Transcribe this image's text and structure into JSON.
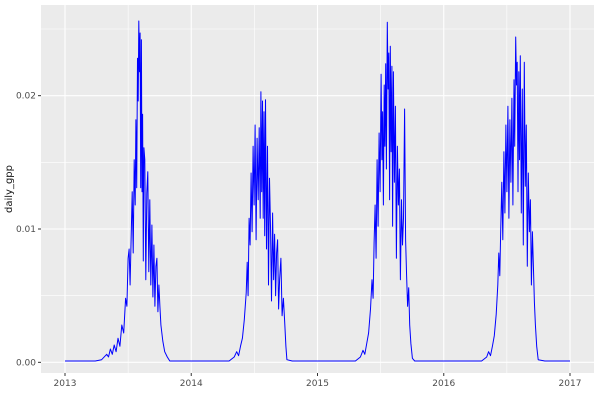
{
  "figure": {
    "kind": "ggplot2-style time series plot",
    "title": "",
    "panel_background": "#EBEBEB",
    "grid_color": "#FFFFFF",
    "tick_mark_color": "#333333",
    "tick_label_color": "#4D4D4D"
  },
  "chart_data": {
    "type": "line",
    "title": "",
    "xlabel": "",
    "ylabel": "daily_gpp",
    "legend": "none",
    "grid": "on",
    "xlim": [
      2012.81,
      2017.19
    ],
    "ylim": [
      -0.0008,
      0.0268
    ],
    "x_tick_values": [
      2013,
      2014,
      2015,
      2016,
      2017
    ],
    "x_tick_labels": [
      "2013",
      "2014",
      "2015",
      "2016",
      "2017"
    ],
    "x_minor_ticks": [
      2013.5,
      2014.5,
      2015.5,
      2016.5
    ],
    "y_tick_values": [
      0,
      0.01,
      0.02
    ],
    "y_tick_labels": [
      "0.00",
      "0.01",
      "0.02"
    ],
    "y_minor_ticks": [
      0.005,
      0.015,
      0.025
    ],
    "series": [
      {
        "name": "daily_gpp",
        "color": "#0000FF",
        "points": [
          [
            2013.0,
            0.0001
          ],
          [
            2013.08,
            0.0001
          ],
          [
            2013.16,
            0.0001
          ],
          [
            2013.24,
            0.0001
          ],
          [
            2013.29,
            0.0002
          ],
          [
            2013.33,
            0.0006
          ],
          [
            2013.345,
            0.0004
          ],
          [
            2013.36,
            0.001
          ],
          [
            2013.375,
            0.0006
          ],
          [
            2013.39,
            0.0013
          ],
          [
            2013.405,
            0.0008
          ],
          [
            2013.42,
            0.0018
          ],
          [
            2013.435,
            0.0012
          ],
          [
            2013.45,
            0.0028
          ],
          [
            2013.465,
            0.0022
          ],
          [
            2013.48,
            0.0048
          ],
          [
            2013.49,
            0.0042
          ],
          [
            2013.5,
            0.0078
          ],
          [
            2013.508,
            0.0085
          ],
          [
            2013.516,
            0.0058
          ],
          [
            2013.524,
            0.0092
          ],
          [
            2013.532,
            0.0128
          ],
          [
            2013.54,
            0.0082
          ],
          [
            2013.548,
            0.0152
          ],
          [
            2013.556,
            0.0118
          ],
          [
            2013.562,
            0.0182
          ],
          [
            2013.568,
            0.0131
          ],
          [
            2013.574,
            0.0228
          ],
          [
            2013.58,
            0.0196
          ],
          [
            2013.585,
            0.0256
          ],
          [
            2013.59,
            0.0218
          ],
          [
            2013.595,
            0.0247
          ],
          [
            2013.6,
            0.0131
          ],
          [
            2013.605,
            0.0242
          ],
          [
            2013.61,
            0.0128
          ],
          [
            2013.615,
            0.0186
          ],
          [
            2013.62,
            0.0076
          ],
          [
            2013.625,
            0.0161
          ],
          [
            2013.632,
            0.0152
          ],
          [
            2013.64,
            0.0062
          ],
          [
            2013.648,
            0.0127
          ],
          [
            2013.656,
            0.0143
          ],
          [
            2013.664,
            0.0068
          ],
          [
            2013.672,
            0.0122
          ],
          [
            2013.68,
            0.0058
          ],
          [
            2013.688,
            0.0103
          ],
          [
            2013.696,
            0.0049
          ],
          [
            2013.704,
            0.0088
          ],
          [
            2013.712,
            0.0042
          ],
          [
            2013.72,
            0.0072
          ],
          [
            2013.728,
            0.0078
          ],
          [
            2013.736,
            0.0038
          ],
          [
            2013.744,
            0.0058
          ],
          [
            2013.752,
            0.0042
          ],
          [
            2013.76,
            0.0028
          ],
          [
            2013.775,
            0.0016
          ],
          [
            2013.79,
            0.0008
          ],
          [
            2013.81,
            0.0004
          ],
          [
            2013.83,
            0.0001
          ],
          [
            2013.92,
            0.0001
          ],
          [
            2014.0,
            0.0001
          ],
          [
            2014.1,
            0.0001
          ],
          [
            2014.2,
            0.0001
          ],
          [
            2014.3,
            0.0001
          ],
          [
            2014.34,
            0.0004
          ],
          [
            2014.36,
            0.0008
          ],
          [
            2014.375,
            0.0005
          ],
          [
            2014.39,
            0.0012
          ],
          [
            2014.405,
            0.0018
          ],
          [
            2014.42,
            0.0032
          ],
          [
            2014.435,
            0.0052
          ],
          [
            2014.443,
            0.0075
          ],
          [
            2014.45,
            0.005
          ],
          [
            2014.458,
            0.0108
          ],
          [
            2014.466,
            0.0088
          ],
          [
            2014.474,
            0.0142
          ],
          [
            2014.482,
            0.0098
          ],
          [
            2014.49,
            0.0162
          ],
          [
            2014.498,
            0.0118
          ],
          [
            2014.506,
            0.0178
          ],
          [
            2014.514,
            0.0092
          ],
          [
            2014.522,
            0.0168
          ],
          [
            2014.53,
            0.0122
          ],
          [
            2014.538,
            0.0176
          ],
          [
            2014.546,
            0.0108
          ],
          [
            2014.552,
            0.0203
          ],
          [
            2014.558,
            0.0128
          ],
          [
            2014.564,
            0.0196
          ],
          [
            2014.57,
            0.0108
          ],
          [
            2014.576,
            0.0188
          ],
          [
            2014.582,
            0.0095
          ],
          [
            2014.588,
            0.0197
          ],
          [
            2014.596,
            0.0085
          ],
          [
            2014.604,
            0.0162
          ],
          [
            2014.612,
            0.0058
          ],
          [
            2014.62,
            0.0138
          ],
          [
            2014.628,
            0.0102
          ],
          [
            2014.636,
            0.0046
          ],
          [
            2014.644,
            0.0112
          ],
          [
            2014.652,
            0.0062
          ],
          [
            2014.66,
            0.0096
          ],
          [
            2014.668,
            0.005
          ],
          [
            2014.676,
            0.0082
          ],
          [
            2014.684,
            0.0092
          ],
          [
            2014.692,
            0.004
          ],
          [
            2014.7,
            0.0062
          ],
          [
            2014.71,
            0.0078
          ],
          [
            2014.72,
            0.0035
          ],
          [
            2014.73,
            0.0048
          ],
          [
            2014.74,
            0.003
          ],
          [
            2014.75,
            0.0012
          ],
          [
            2014.758,
            0.0002
          ],
          [
            2014.8,
            0.0001
          ],
          [
            2014.9,
            0.0001
          ],
          [
            2015.0,
            0.0001
          ],
          [
            2015.1,
            0.0001
          ],
          [
            2015.2,
            0.0001
          ],
          [
            2015.3,
            0.0001
          ],
          [
            2015.34,
            0.0004
          ],
          [
            2015.36,
            0.0009
          ],
          [
            2015.375,
            0.0006
          ],
          [
            2015.39,
            0.0014
          ],
          [
            2015.405,
            0.0022
          ],
          [
            2015.42,
            0.004
          ],
          [
            2015.432,
            0.0062
          ],
          [
            2015.44,
            0.0048
          ],
          [
            2015.448,
            0.009
          ],
          [
            2015.456,
            0.0118
          ],
          [
            2015.464,
            0.0078
          ],
          [
            2015.472,
            0.0152
          ],
          [
            2015.48,
            0.0102
          ],
          [
            2015.488,
            0.0172
          ],
          [
            2015.496,
            0.0128
          ],
          [
            2015.504,
            0.0216
          ],
          [
            2015.51,
            0.0152
          ],
          [
            2015.516,
            0.0188
          ],
          [
            2015.522,
            0.0118
          ],
          [
            2015.528,
            0.0208
          ],
          [
            2015.534,
            0.0162
          ],
          [
            2015.54,
            0.0224
          ],
          [
            2015.546,
            0.0145
          ],
          [
            2015.553,
            0.0255
          ],
          [
            2015.559,
            0.0205
          ],
          [
            2015.565,
            0.0232
          ],
          [
            2015.571,
            0.0122
          ],
          [
            2015.577,
            0.0237
          ],
          [
            2015.583,
            0.0158
          ],
          [
            2015.589,
            0.0222
          ],
          [
            2015.595,
            0.0102
          ],
          [
            2015.601,
            0.0218
          ],
          [
            2015.609,
            0.0135
          ],
          [
            2015.617,
            0.0192
          ],
          [
            2015.625,
            0.0078
          ],
          [
            2015.633,
            0.0162
          ],
          [
            2015.641,
            0.0118
          ],
          [
            2015.649,
            0.0145
          ],
          [
            2015.657,
            0.0062
          ],
          [
            2015.665,
            0.0122
          ],
          [
            2015.673,
            0.0088
          ],
          [
            2015.681,
            0.0108
          ],
          [
            2015.69,
            0.019
          ],
          [
            2015.698,
            0.0092
          ],
          [
            2015.706,
            0.0065
          ],
          [
            2015.714,
            0.0042
          ],
          [
            2015.722,
            0.0056
          ],
          [
            2015.73,
            0.0028
          ],
          [
            2015.74,
            0.0014
          ],
          [
            2015.752,
            0.0003
          ],
          [
            2015.77,
            0.0001
          ],
          [
            2015.9,
            0.0001
          ],
          [
            2016.0,
            0.0001
          ],
          [
            2016.1,
            0.0001
          ],
          [
            2016.2,
            0.0001
          ],
          [
            2016.3,
            0.0001
          ],
          [
            2016.34,
            0.0004
          ],
          [
            2016.355,
            0.0008
          ],
          [
            2016.37,
            0.0005
          ],
          [
            2016.385,
            0.0012
          ],
          [
            2016.4,
            0.002
          ],
          [
            2016.415,
            0.0036
          ],
          [
            2016.428,
            0.0058
          ],
          [
            2016.436,
            0.0082
          ],
          [
            2016.444,
            0.0065
          ],
          [
            2016.452,
            0.0102
          ],
          [
            2016.46,
            0.0135
          ],
          [
            2016.468,
            0.0092
          ],
          [
            2016.476,
            0.0158
          ],
          [
            2016.484,
            0.0112
          ],
          [
            2016.492,
            0.0178
          ],
          [
            2016.5,
            0.0128
          ],
          [
            2016.508,
            0.0192
          ],
          [
            2016.516,
            0.0108
          ],
          [
            2016.524,
            0.0182
          ],
          [
            2016.532,
            0.0135
          ],
          [
            2016.54,
            0.0198
          ],
          [
            2016.548,
            0.0118
          ],
          [
            2016.556,
            0.0212
          ],
          [
            2016.562,
            0.0162
          ],
          [
            2016.57,
            0.0244
          ],
          [
            2016.576,
            0.0208
          ],
          [
            2016.582,
            0.0225
          ],
          [
            2016.588,
            0.0128
          ],
          [
            2016.594,
            0.0218
          ],
          [
            2016.6,
            0.0152
          ],
          [
            2016.606,
            0.023
          ],
          [
            2016.614,
            0.0112
          ],
          [
            2016.622,
            0.0205
          ],
          [
            2016.63,
            0.0088
          ],
          [
            2016.638,
            0.0225
          ],
          [
            2016.646,
            0.0132
          ],
          [
            2016.654,
            0.0178
          ],
          [
            2016.662,
            0.0072
          ],
          [
            2016.67,
            0.0142
          ],
          [
            2016.678,
            0.0098
          ],
          [
            2016.686,
            0.0122
          ],
          [
            2016.694,
            0.0058
          ],
          [
            2016.702,
            0.0098
          ],
          [
            2016.71,
            0.0072
          ],
          [
            2016.718,
            0.0045
          ],
          [
            2016.726,
            0.0028
          ],
          [
            2016.736,
            0.0012
          ],
          [
            2016.748,
            0.0002
          ],
          [
            2016.8,
            0.0001
          ],
          [
            2016.9,
            0.0001
          ],
          [
            2017.0,
            0.0001
          ]
        ]
      }
    ]
  }
}
